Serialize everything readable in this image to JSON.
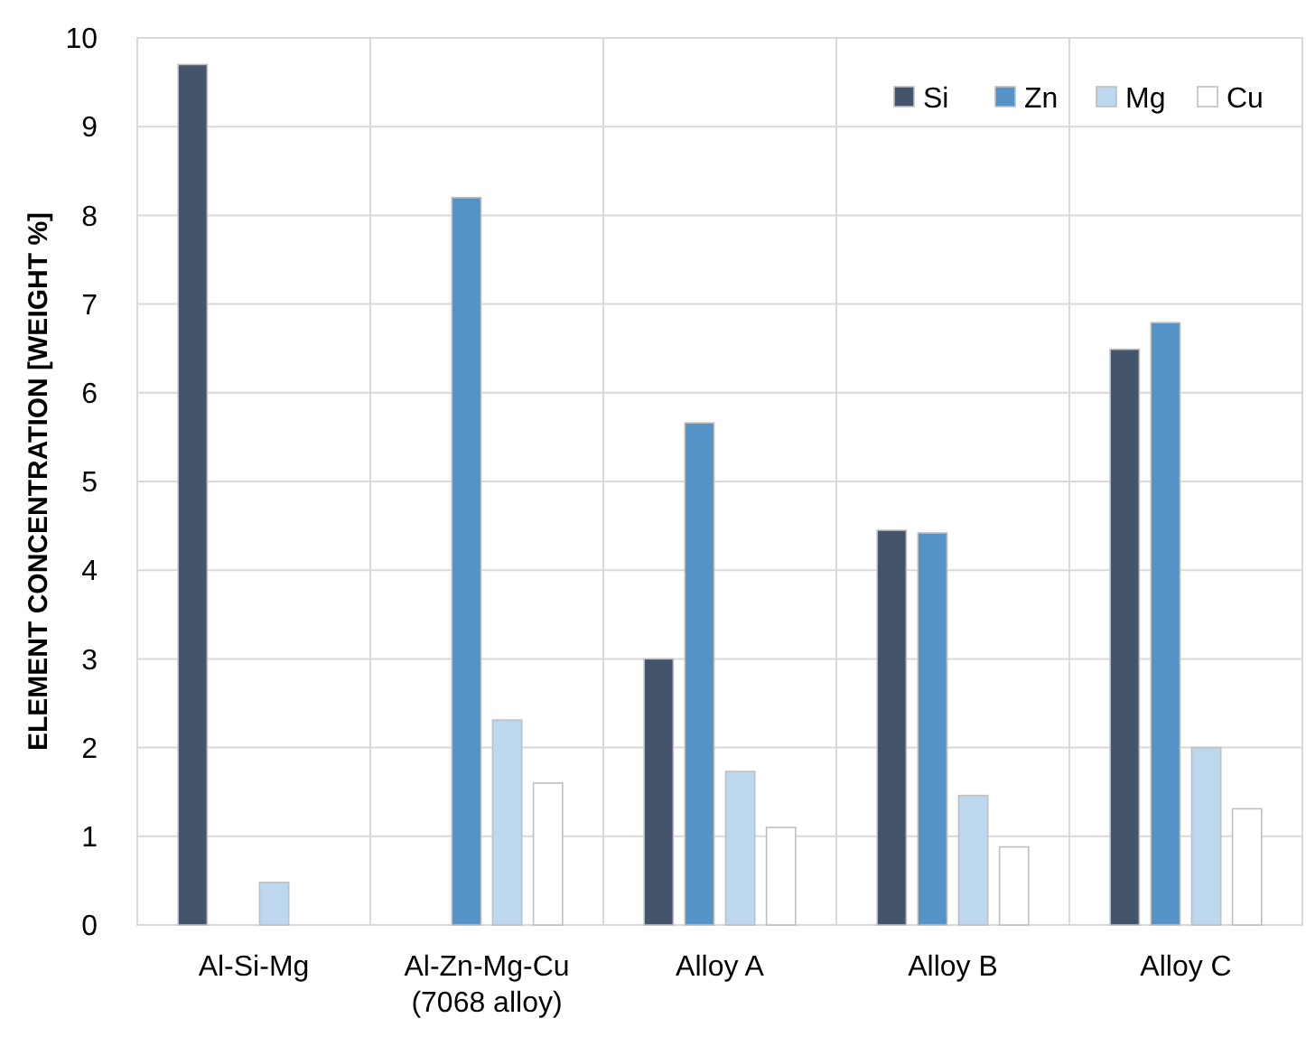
{
  "chart_data": {
    "type": "bar",
    "ylabel": "ELEMENT CONCENTRATION [WEIGHT %]",
    "categories": [
      "Al-Si-Mg",
      "Al-Zn-Mg-Cu\n(7068 alloy)",
      "Alloy A",
      "Alloy B",
      "Alloy C"
    ],
    "series": [
      {
        "name": "Si",
        "color": "#44546a",
        "values": [
          9.7,
          null,
          3.0,
          4.45,
          6.49
        ]
      },
      {
        "name": "Zn",
        "color": "#5592c8",
        "values": [
          null,
          8.2,
          5.66,
          4.42,
          6.79
        ]
      },
      {
        "name": "Mg",
        "color": "#bdd7ee",
        "values": [
          0.48,
          2.31,
          1.73,
          1.46,
          2.0
        ]
      },
      {
        "name": "Cu",
        "color": "#ffffff",
        "values": [
          null,
          1.6,
          1.1,
          0.88,
          1.31
        ]
      }
    ],
    "ylim": [
      0,
      10
    ],
    "yticks": [
      0,
      1,
      2,
      3,
      4,
      5,
      6,
      7,
      8,
      9,
      10
    ],
    "grid": true,
    "legend": "top right"
  }
}
